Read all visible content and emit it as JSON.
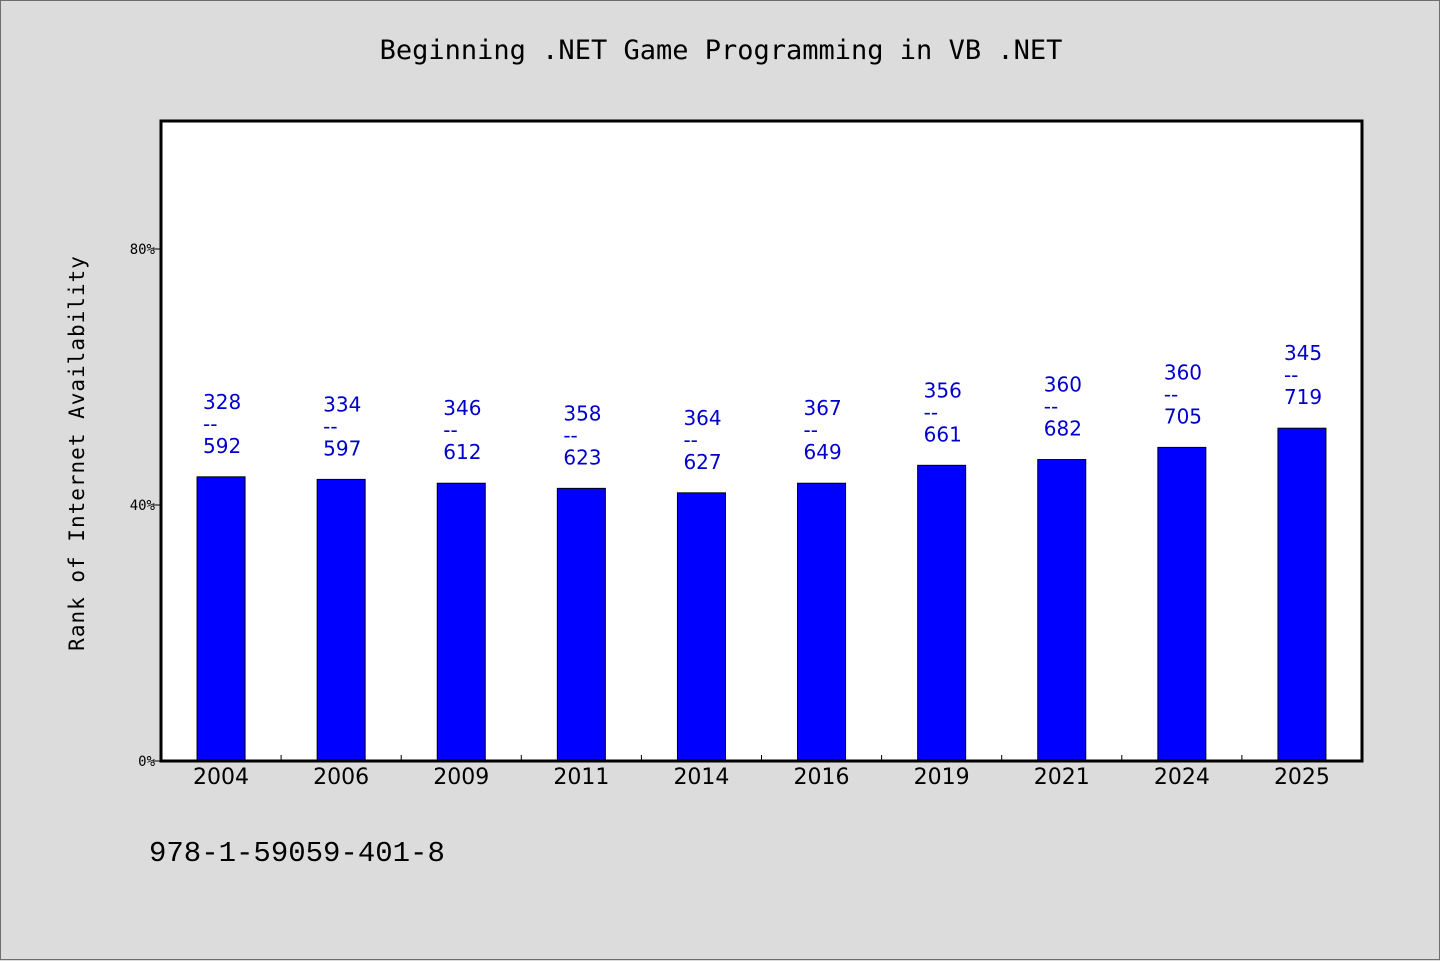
{
  "chart_data": {
    "type": "bar",
    "title": "Beginning .NET Game Programming in VB .NET",
    "ylabel": "Rank of Internet Availability",
    "xlabel": "",
    "ylim": [
      0,
      100
    ],
    "yticks": [
      {
        "value": 0,
        "label": "0%"
      },
      {
        "value": 40,
        "label": "40%"
      },
      {
        "value": 80,
        "label": "80%"
      }
    ],
    "categories": [
      "2004",
      "2006",
      "2009",
      "2011",
      "2014",
      "2016",
      "2019",
      "2021",
      "2024",
      "2025"
    ],
    "values": [
      44.4,
      44.0,
      43.4,
      42.6,
      41.9,
      43.4,
      46.2,
      47.1,
      49.0,
      52.0
    ],
    "data_labels": [
      {
        "top": "328",
        "sep": "--",
        "bottom": "592"
      },
      {
        "top": "334",
        "sep": "--",
        "bottom": "597"
      },
      {
        "top": "346",
        "sep": "--",
        "bottom": "612"
      },
      {
        "top": "358",
        "sep": "--",
        "bottom": "623"
      },
      {
        "top": "364",
        "sep": "--",
        "bottom": "627"
      },
      {
        "top": "367",
        "sep": "--",
        "bottom": "649"
      },
      {
        "top": "356",
        "sep": "--",
        "bottom": "661"
      },
      {
        "top": "360",
        "sep": "--",
        "bottom": "682"
      },
      {
        "top": "360",
        "sep": "--",
        "bottom": "705"
      },
      {
        "top": "345",
        "sep": "--",
        "bottom": "719"
      }
    ],
    "bar_color": "#0000ff",
    "label_color": "#0000cc",
    "grid": false,
    "legend": "none"
  },
  "footer": {
    "isbn": "978-1-59059-401-8"
  },
  "colors": {
    "background": "#dcdcdc",
    "plot_background": "#ffffff"
  }
}
